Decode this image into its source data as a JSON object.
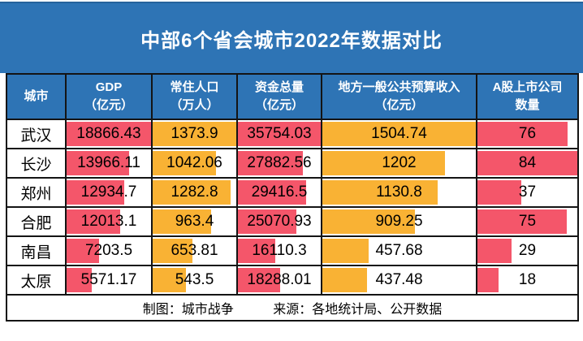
{
  "title": "中部6个省会城市2022年数据对比",
  "footer": {
    "credit": "制图：城市战争",
    "source": "来源：各地统计局、公开数据"
  },
  "colors": {
    "banner_blue": "#2e74b5",
    "bar_red": "#f4566a",
    "bar_orange": "#f9b234",
    "border": "#141414",
    "header_text": "#ffffff",
    "value_text": "#000000"
  },
  "chart_data": {
    "type": "table",
    "title": "中部6个省会城市2022年数据对比",
    "legend_position": "none",
    "bar_note": "each numeric cell contains a horizontal bar scaled to the column maximum",
    "columns": [
      {
        "label": "城市",
        "unit": "",
        "bar": null,
        "max": null
      },
      {
        "label": "GDP",
        "unit": "（亿元）",
        "bar": "red",
        "max": 18866.43
      },
      {
        "label": "常住人口",
        "unit": "（万人）",
        "bar": "orange",
        "max": 1373.9
      },
      {
        "label": "资金总量",
        "unit": "（亿元）",
        "bar": "red",
        "max": 35754.03
      },
      {
        "label": "地方一般公共预算收入",
        "unit": "（亿元）",
        "bar": "orange",
        "max": 1504.74
      },
      {
        "label": "A股上市公司",
        "unit": "数量",
        "bar": "red",
        "max": 84
      }
    ],
    "rows": [
      {
        "city": "武汉",
        "values": [
          "18866.43",
          "1373.9",
          "35754.03",
          "1504.74",
          "76"
        ]
      },
      {
        "city": "长沙",
        "values": [
          "13966.11",
          "1042.06",
          "27882.56",
          "1202",
          "84"
        ]
      },
      {
        "city": "郑州",
        "values": [
          "12934.7",
          "1282.8",
          "29416.5",
          "1130.8",
          "37"
        ]
      },
      {
        "city": "合肥",
        "values": [
          "12013.1",
          "963.4",
          "25070.93",
          "909.25",
          "75"
        ]
      },
      {
        "city": "南昌",
        "values": [
          "7203.5",
          "653.81",
          "16110.3",
          "457.68",
          "29"
        ]
      },
      {
        "city": "太原",
        "values": [
          "5571.17",
          "543.5",
          "18288.01",
          "437.48",
          "18"
        ]
      }
    ]
  }
}
